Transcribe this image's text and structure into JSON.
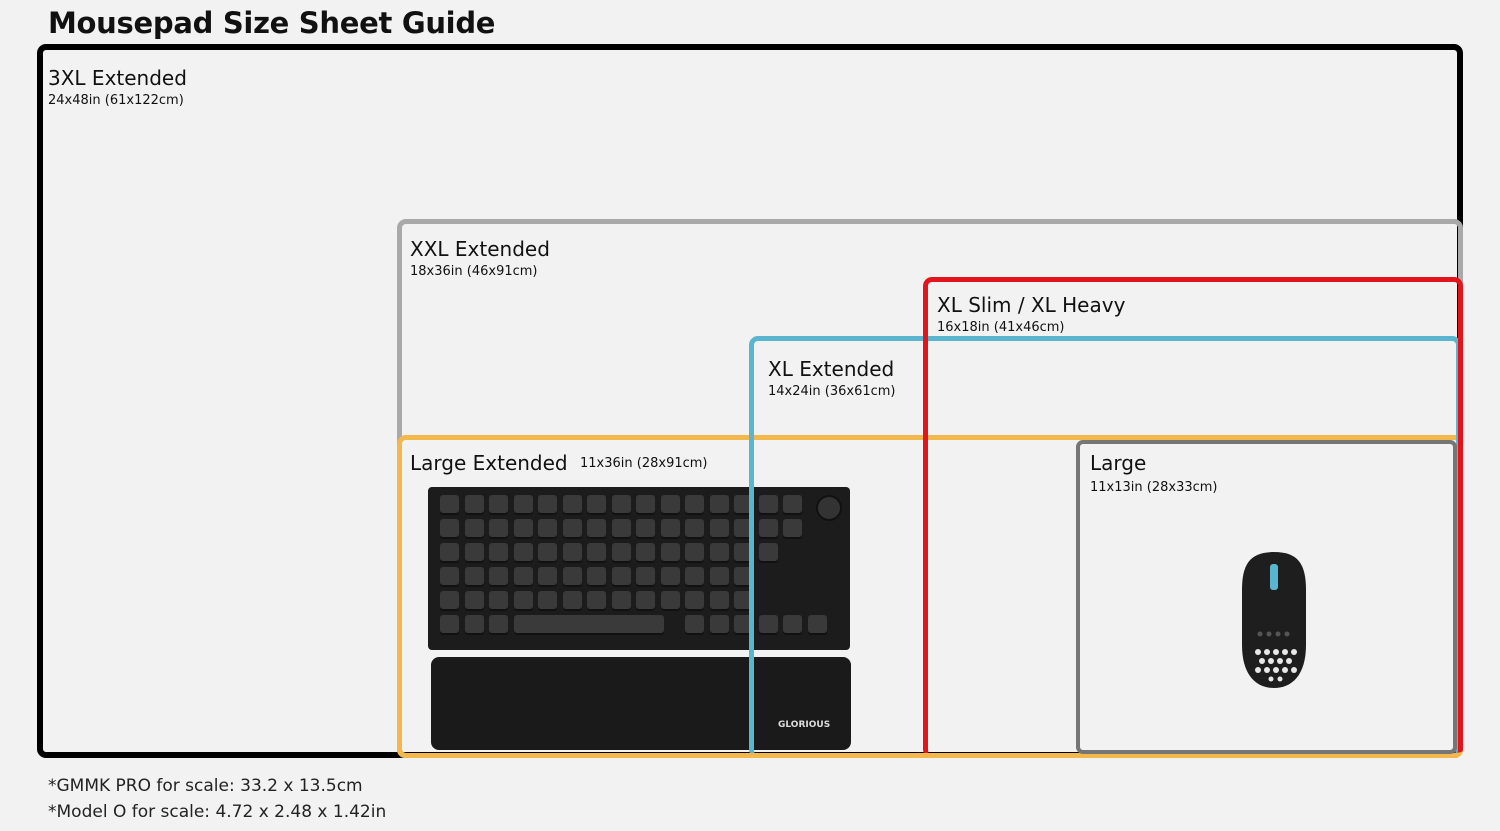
{
  "title": "Mousepad Size Sheet Guide",
  "sizes": [
    {
      "name": "3XL Extended",
      "dims": "24x48in (61x122cm)",
      "color": "#000000"
    },
    {
      "name": "XXL Extended",
      "dims": "18x36in (46x91cm)",
      "color": "#a9a9a9"
    },
    {
      "name": "XL Slim / XL Heavy",
      "dims": "16x18in (41x46cm)",
      "color": "#e3141b"
    },
    {
      "name": "XL Extended",
      "dims": "14x24in (36x61cm)",
      "color": "#5ab6cf"
    },
    {
      "name": "Large Extended",
      "dims": "11x36in (28x91cm)",
      "color": "#f3b84c"
    },
    {
      "name": "Large",
      "dims": "11x13in (28x33cm)",
      "color": "#767676"
    }
  ],
  "keyboard_brand": "GLORIOUS",
  "footnotes": [
    "*GMMK PRO for scale: 33.2 x 13.5cm",
    "*Model O for scale: 4.72 x 2.48 x 1.42in"
  ]
}
